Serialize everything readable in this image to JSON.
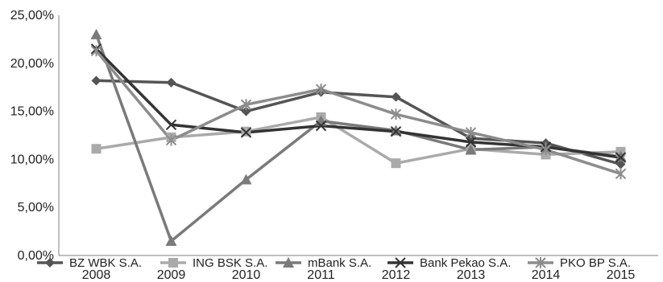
{
  "chart_data": {
    "type": "line",
    "categories": [
      "2008",
      "2009",
      "2010",
      "2011",
      "2012",
      "2013",
      "2014",
      "2015"
    ],
    "ylim": [
      0,
      25
    ],
    "yticks": [
      0,
      5,
      10,
      15,
      20,
      25
    ],
    "ytick_labels": [
      "0,00%",
      "5,00%",
      "10,00%",
      "15,00%",
      "20,00%",
      "25,00%"
    ],
    "grid": false,
    "legend_position": "bottom",
    "series": [
      {
        "name": "BZ WBK S.A.",
        "color": "#555555",
        "marker": "diamond",
        "values": [
          18.2,
          18.0,
          15.0,
          17.0,
          16.5,
          12.2,
          11.7,
          9.5
        ]
      },
      {
        "name": "ING BSK S.A.",
        "color": "#aaaaaa",
        "marker": "square",
        "values": [
          11.1,
          12.3,
          12.9,
          14.4,
          9.6,
          11.1,
          10.5,
          10.8
        ]
      },
      {
        "name": "mBank S.A.",
        "color": "#7a7a7a",
        "marker": "triangle",
        "values": [
          23.0,
          1.5,
          7.9,
          14.0,
          13.0,
          11.0,
          11.3,
          10.3
        ]
      },
      {
        "name": "Bank Pekao S.A.",
        "color": "#333333",
        "marker": "x",
        "values": [
          21.5,
          13.6,
          12.8,
          13.5,
          12.9,
          11.8,
          11.3,
          10.2
        ]
      },
      {
        "name": "PKO BP S.A.",
        "color": "#8c8c8c",
        "marker": "asterisk",
        "values": [
          21.3,
          12.0,
          15.7,
          17.3,
          14.7,
          12.8,
          11.0,
          8.5
        ]
      }
    ]
  }
}
